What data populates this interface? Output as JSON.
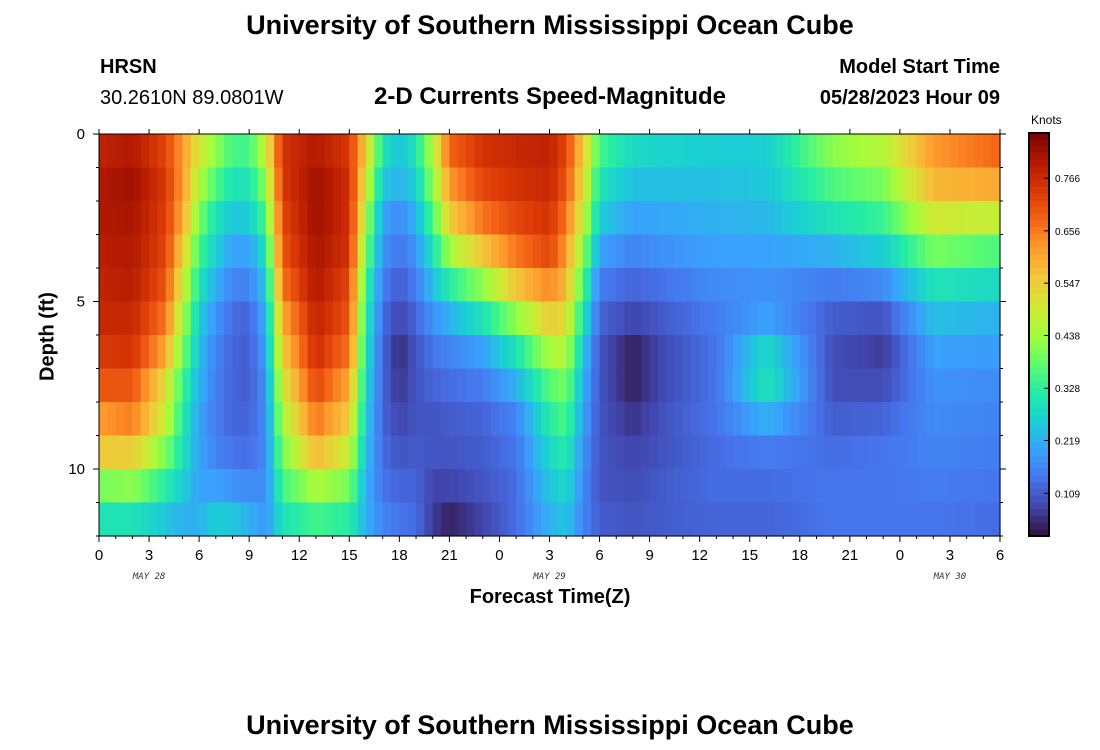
{
  "chart_data": {
    "type": "heatmap",
    "title": "University of Southern Mississippi Ocean Cube",
    "station": "HRSN",
    "coordinates": "30.2610N  89.0801W",
    "subtitle": "2-D Currents Speed-Magnitude",
    "model_start_label": "Model Start Time",
    "model_start": "05/28/2023 Hour 09",
    "xlabel": "Forecast Time(Z)",
    "ylabel": "Depth (ft)",
    "x_tick_labels": [
      "0",
      "3",
      "6",
      "9",
      "12",
      "15",
      "18",
      "21",
      "0",
      "3",
      "6",
      "9",
      "12",
      "15",
      "18",
      "21",
      "0",
      "3",
      "6"
    ],
    "x_range_hours": [
      0,
      54
    ],
    "y_tick_labels": [
      "0",
      "5",
      "10"
    ],
    "y_range_ft": [
      0,
      12
    ],
    "date_labels": [
      "MAY 28",
      "MAY 29",
      "MAY 30"
    ],
    "colorbar_title": "Knots",
    "colorbar_ticks": [
      "0.766",
      "0.656",
      "0.547",
      "0.438",
      "0.328",
      "0.219",
      "0.109"
    ],
    "colorbar_range": [
      0.02,
      0.86
    ],
    "depth_levels_ft": [
      0.5,
      1.5,
      2.5,
      3.5,
      4.5,
      5.5,
      6.5,
      7.5,
      8.5,
      9.5,
      10.5,
      11.5
    ],
    "speed_knots_columns": [
      {
        "hour": 0,
        "speeds": [
          0.78,
          0.8,
          0.8,
          0.79,
          0.78,
          0.77,
          0.74,
          0.7,
          0.62,
          0.55,
          0.4,
          0.3
        ]
      },
      {
        "hour": 2,
        "speeds": [
          0.8,
          0.82,
          0.81,
          0.8,
          0.79,
          0.77,
          0.75,
          0.7,
          0.65,
          0.55,
          0.42,
          0.3
        ]
      },
      {
        "hour": 4,
        "speeds": [
          0.72,
          0.74,
          0.73,
          0.72,
          0.7,
          0.66,
          0.6,
          0.52,
          0.48,
          0.4,
          0.32,
          0.25
        ]
      },
      {
        "hour": 5,
        "speeds": [
          0.62,
          0.62,
          0.6,
          0.55,
          0.5,
          0.45,
          0.4,
          0.35,
          0.32,
          0.3,
          0.26,
          0.22
        ]
      },
      {
        "hour": 6,
        "speeds": [
          0.5,
          0.45,
          0.4,
          0.35,
          0.3,
          0.26,
          0.24,
          0.22,
          0.2,
          0.2,
          0.2,
          0.22
        ]
      },
      {
        "hour": 7,
        "speeds": [
          0.42,
          0.36,
          0.3,
          0.26,
          0.22,
          0.18,
          0.16,
          0.15,
          0.15,
          0.16,
          0.2,
          0.26
        ]
      },
      {
        "hour": 8,
        "speeds": [
          0.35,
          0.3,
          0.25,
          0.2,
          0.16,
          0.13,
          0.12,
          0.12,
          0.12,
          0.14,
          0.18,
          0.25
        ]
      },
      {
        "hour": 9,
        "speeds": [
          0.35,
          0.3,
          0.26,
          0.2,
          0.16,
          0.12,
          0.11,
          0.11,
          0.12,
          0.13,
          0.17,
          0.22
        ]
      },
      {
        "hour": 10,
        "speeds": [
          0.48,
          0.42,
          0.36,
          0.3,
          0.25,
          0.22,
          0.2,
          0.18,
          0.17,
          0.17,
          0.17,
          0.18
        ]
      },
      {
        "hour": 11,
        "speeds": [
          0.75,
          0.74,
          0.72,
          0.7,
          0.66,
          0.6,
          0.55,
          0.5,
          0.45,
          0.4,
          0.35,
          0.3
        ]
      },
      {
        "hour": 13,
        "speeds": [
          0.8,
          0.82,
          0.82,
          0.81,
          0.8,
          0.78,
          0.76,
          0.72,
          0.66,
          0.58,
          0.45,
          0.35
        ]
      },
      {
        "hour": 15,
        "speeds": [
          0.74,
          0.76,
          0.76,
          0.75,
          0.72,
          0.7,
          0.66,
          0.6,
          0.55,
          0.48,
          0.4,
          0.32
        ]
      },
      {
        "hour": 16,
        "speeds": [
          0.55,
          0.5,
          0.45,
          0.4,
          0.35,
          0.32,
          0.3,
          0.28,
          0.26,
          0.24,
          0.22,
          0.22
        ]
      },
      {
        "hour": 17,
        "speeds": [
          0.3,
          0.25,
          0.2,
          0.18,
          0.15,
          0.13,
          0.12,
          0.12,
          0.12,
          0.13,
          0.14,
          0.16
        ]
      },
      {
        "hour": 18,
        "speeds": [
          0.24,
          0.22,
          0.17,
          0.14,
          0.11,
          0.08,
          0.05,
          0.06,
          0.08,
          0.1,
          0.12,
          0.14
        ]
      },
      {
        "hour": 19,
        "speeds": [
          0.3,
          0.26,
          0.22,
          0.18,
          0.15,
          0.12,
          0.1,
          0.1,
          0.1,
          0.11,
          0.12,
          0.13
        ]
      },
      {
        "hour": 20,
        "speeds": [
          0.46,
          0.42,
          0.36,
          0.3,
          0.24,
          0.18,
          0.14,
          0.12,
          0.1,
          0.1,
          0.08,
          0.07
        ]
      },
      {
        "hour": 21,
        "speeds": [
          0.68,
          0.62,
          0.55,
          0.44,
          0.32,
          0.22,
          0.16,
          0.13,
          0.11,
          0.1,
          0.08,
          0.04
        ]
      },
      {
        "hour": 23,
        "speeds": [
          0.75,
          0.72,
          0.66,
          0.56,
          0.42,
          0.3,
          0.2,
          0.15,
          0.12,
          0.11,
          0.1,
          0.08
        ]
      },
      {
        "hour": 25,
        "speeds": [
          0.77,
          0.75,
          0.72,
          0.66,
          0.56,
          0.42,
          0.3,
          0.22,
          0.16,
          0.14,
          0.13,
          0.13
        ]
      },
      {
        "hour": 27,
        "speeds": [
          0.78,
          0.77,
          0.75,
          0.72,
          0.64,
          0.55,
          0.45,
          0.37,
          0.32,
          0.28,
          0.25,
          0.22
        ]
      },
      {
        "hour": 28,
        "speeds": [
          0.72,
          0.7,
          0.66,
          0.62,
          0.58,
          0.52,
          0.46,
          0.4,
          0.36,
          0.32,
          0.28,
          0.25
        ]
      },
      {
        "hour": 29,
        "speeds": [
          0.55,
          0.52,
          0.48,
          0.42,
          0.36,
          0.3,
          0.25,
          0.22,
          0.2,
          0.18,
          0.17,
          0.16
        ]
      },
      {
        "hour": 30,
        "speeds": [
          0.35,
          0.3,
          0.26,
          0.2,
          0.15,
          0.12,
          0.1,
          0.1,
          0.1,
          0.1,
          0.1,
          0.11
        ]
      },
      {
        "hour": 32,
        "speeds": [
          0.28,
          0.24,
          0.2,
          0.16,
          0.12,
          0.08,
          0.04,
          0.04,
          0.06,
          0.08,
          0.09,
          0.1
        ]
      },
      {
        "hour": 34,
        "speeds": [
          0.27,
          0.24,
          0.21,
          0.18,
          0.14,
          0.11,
          0.09,
          0.09,
          0.1,
          0.1,
          0.11,
          0.11
        ]
      },
      {
        "hour": 37,
        "speeds": [
          0.26,
          0.24,
          0.22,
          0.2,
          0.17,
          0.15,
          0.14,
          0.14,
          0.14,
          0.13,
          0.13,
          0.12
        ]
      },
      {
        "hour": 40,
        "speeds": [
          0.26,
          0.25,
          0.23,
          0.2,
          0.18,
          0.2,
          0.28,
          0.3,
          0.22,
          0.15,
          0.13,
          0.12
        ]
      },
      {
        "hour": 44,
        "speeds": [
          0.42,
          0.36,
          0.3,
          0.22,
          0.15,
          0.11,
          0.09,
          0.09,
          0.11,
          0.13,
          0.14,
          0.14
        ]
      },
      {
        "hour": 47,
        "speeds": [
          0.46,
          0.4,
          0.34,
          0.26,
          0.17,
          0.1,
          0.07,
          0.09,
          0.12,
          0.14,
          0.14,
          0.14
        ]
      },
      {
        "hour": 50,
        "speeds": [
          0.62,
          0.58,
          0.5,
          0.4,
          0.3,
          0.24,
          0.2,
          0.18,
          0.17,
          0.16,
          0.15,
          0.14
        ]
      },
      {
        "hour": 54,
        "speeds": [
          0.68,
          0.6,
          0.48,
          0.36,
          0.28,
          0.22,
          0.19,
          0.17,
          0.16,
          0.15,
          0.14,
          0.13
        ]
      }
    ]
  },
  "colors": {
    "colormap": [
      "#30123b",
      "#4145ab",
      "#4675ed",
      "#39a2fc",
      "#1bcfd4",
      "#24eca6",
      "#61fc6c",
      "#a4fc3b",
      "#d1e834",
      "#f3c63a",
      "#fe9b2d",
      "#f36315",
      "#d93806",
      "#b11901",
      "#7a0403"
    ]
  }
}
